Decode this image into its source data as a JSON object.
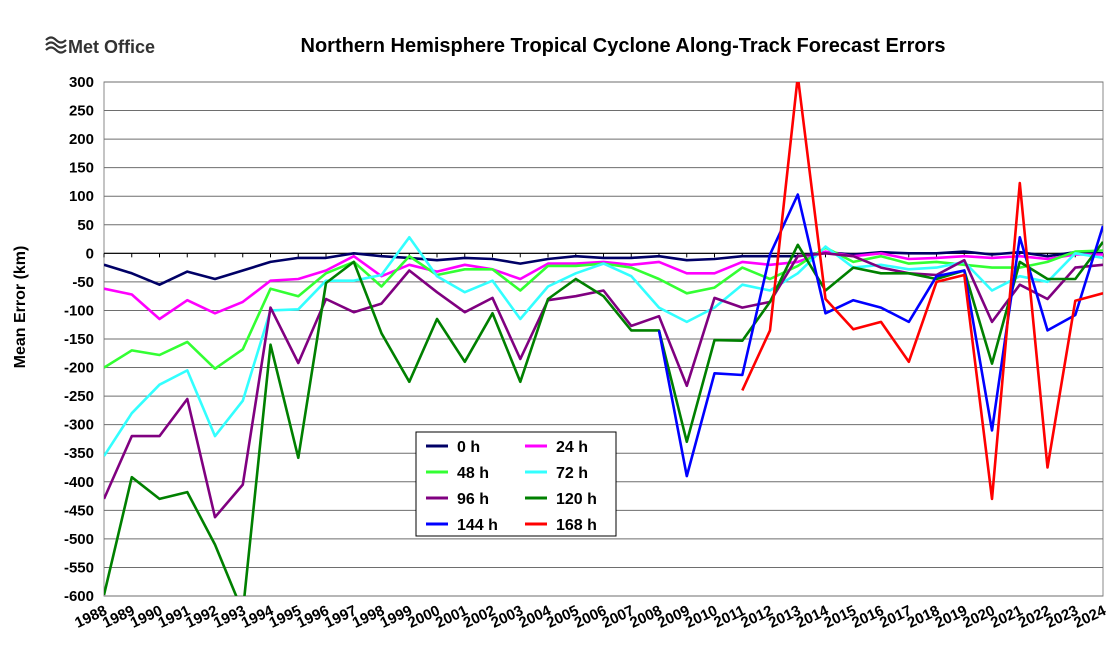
{
  "logo": {
    "text": "Met Office"
  },
  "chart_data": {
    "type": "line",
    "title": "Northern Hemisphere Tropical Cyclone Along-Track Forecast Errors",
    "xlabel": "",
    "ylabel": "Mean Error (km)",
    "ylim": [
      -600,
      300
    ],
    "yticks": [
      300,
      250,
      200,
      150,
      100,
      50,
      0,
      -50,
      -100,
      -150,
      -200,
      -250,
      -300,
      -350,
      -400,
      -450,
      -500,
      -550,
      -600
    ],
    "grid": true,
    "legend_position": "lower-left-center",
    "x": [
      1988,
      1989,
      1990,
      1991,
      1992,
      1993,
      1994,
      1995,
      1996,
      1997,
      1998,
      1999,
      2000,
      2001,
      2002,
      2003,
      2004,
      2005,
      2006,
      2007,
      2008,
      2009,
      2010,
      2011,
      2012,
      2013,
      2014,
      2015,
      2016,
      2017,
      2018,
      2019,
      2020,
      2021,
      2022,
      2023,
      2024
    ],
    "series": [
      {
        "name": "0 h",
        "color": "#000066",
        "values": [
          -20,
          -35,
          -55,
          -32,
          -45,
          -30,
          -15,
          -8,
          -8,
          0,
          -5,
          -8,
          -12,
          -8,
          -10,
          -18,
          -10,
          -5,
          -8,
          -8,
          -5,
          -12,
          -10,
          -5,
          -5,
          -5,
          2,
          -2,
          2,
          0,
          0,
          3,
          -2,
          2,
          -5,
          2,
          0
        ]
      },
      {
        "name": "24 h",
        "color": "#ff00ff",
        "values": [
          -62,
          -72,
          -115,
          -82,
          -105,
          -85,
          -48,
          -45,
          -30,
          -5,
          -40,
          -20,
          -32,
          -20,
          -28,
          -45,
          -18,
          -18,
          -15,
          -20,
          -15,
          -35,
          -35,
          -15,
          -20,
          -15,
          3,
          -5,
          0,
          -10,
          -8,
          -5,
          -8,
          -5,
          -10,
          -2,
          -2
        ]
      },
      {
        "name": "48 h",
        "color": "#33ff33",
        "values": [
          -200,
          -170,
          -178,
          -155,
          -202,
          -168,
          -62,
          -75,
          -35,
          -15,
          -58,
          -5,
          -38,
          -28,
          -28,
          -65,
          -22,
          -22,
          -18,
          -25,
          -45,
          -70,
          -60,
          -25,
          -45,
          -22,
          10,
          -15,
          -5,
          -18,
          -15,
          -20,
          -25,
          -25,
          -15,
          3,
          5
        ]
      },
      {
        "name": "72 h",
        "color": "#33ffff",
        "values": [
          -355,
          -280,
          -230,
          -205,
          -320,
          -258,
          -100,
          -98,
          -48,
          -48,
          -38,
          28,
          -40,
          -68,
          -48,
          -115,
          -58,
          -35,
          -18,
          -40,
          -95,
          -120,
          -95,
          -55,
          -65,
          -35,
          12,
          -25,
          -20,
          -28,
          -25,
          -15,
          -65,
          -40,
          -50,
          0,
          -8
        ]
      },
      {
        "name": "96 h",
        "color": "#800080",
        "values": [
          -430,
          -320,
          -320,
          -255,
          -462,
          -405,
          -95,
          -192,
          -80,
          -103,
          -88,
          -30,
          -68,
          -103,
          -78,
          -185,
          -82,
          -75,
          -65,
          -127,
          -110,
          -232,
          -78,
          -95,
          -85,
          -5,
          0,
          -5,
          -25,
          -35,
          -38,
          -12,
          -120,
          -55,
          -80,
          -25,
          -20
        ]
      },
      {
        "name": "120 h",
        "color": "#008000",
        "values": [
          -598,
          -392,
          -430,
          -418,
          -510,
          -628,
          -160,
          -358,
          -52,
          -15,
          -140,
          -225,
          -115,
          -190,
          -105,
          -225,
          -80,
          -45,
          -75,
          -135,
          -135,
          -330,
          -152,
          -153,
          -85,
          15,
          -65,
          -25,
          -35,
          -35,
          -45,
          -30,
          -193,
          -15,
          -45,
          -45,
          20
        ]
      },
      {
        "name": "144 h",
        "color": "#0000ff",
        "values": [
          null,
          null,
          null,
          null,
          null,
          null,
          null,
          null,
          null,
          null,
          null,
          null,
          null,
          null,
          null,
          null,
          null,
          null,
          null,
          null,
          -135,
          -390,
          -210,
          -213,
          -2,
          103,
          -105,
          -82,
          -95,
          -120,
          -40,
          -30,
          -310,
          28,
          -135,
          -108,
          48
        ]
      },
      {
        "name": "168 h",
        "color": "#ff0000",
        "values": [
          null,
          null,
          null,
          null,
          null,
          null,
          null,
          null,
          null,
          null,
          null,
          null,
          null,
          null,
          null,
          null,
          null,
          null,
          null,
          null,
          null,
          null,
          null,
          -240,
          -135,
          310,
          -80,
          -133,
          -120,
          -190,
          -50,
          -38,
          -430,
          123,
          -375,
          -83,
          -70
        ]
      }
    ]
  }
}
